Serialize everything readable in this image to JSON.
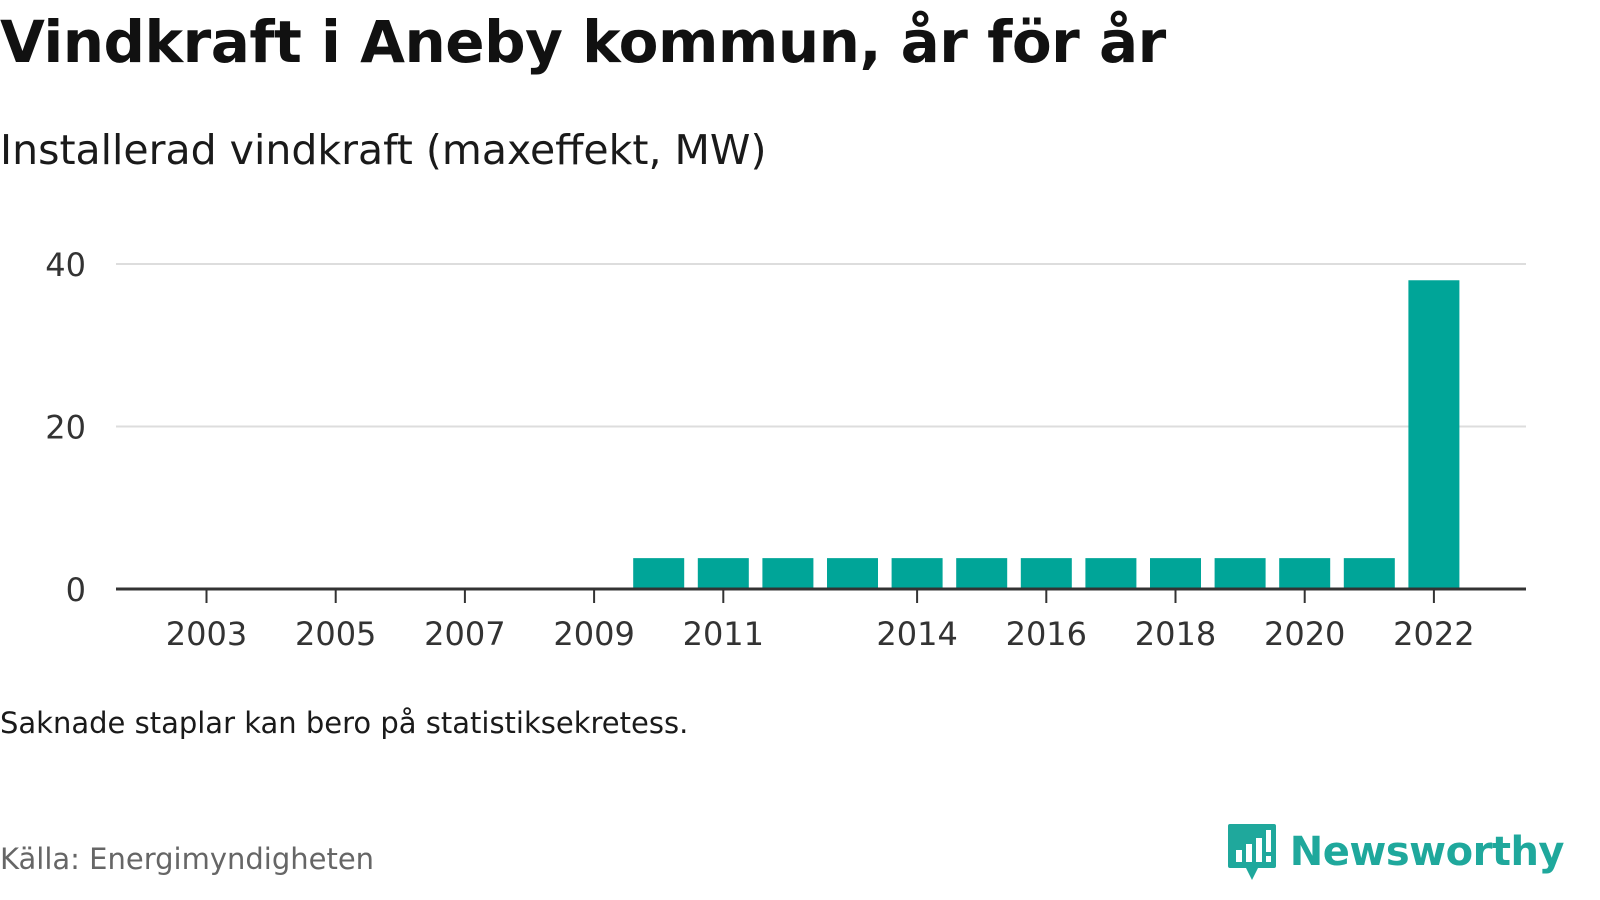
{
  "title": "Vindkraft i Aneby kommun, år för år",
  "subtitle": "Installerad vindkraft (maxeffekt, MW)",
  "note": "Saknade staplar kan bero på statistiksekretess.",
  "source": "Källa: Energimyndigheten",
  "brand": {
    "name": "Newsworthy",
    "icon": "newsworthy-logo-icon",
    "color": "#1fa89c"
  },
  "colors": {
    "bar": "#00a598",
    "grid": "#dddddd",
    "axis": "#333333",
    "tick_text": "#333333"
  },
  "chart_data": {
    "type": "bar",
    "categories": [
      "2003",
      "2004",
      "2005",
      "2006",
      "2007",
      "2008",
      "2009",
      "2010",
      "2011",
      "2012",
      "2013",
      "2014",
      "2015",
      "2016",
      "2017",
      "2018",
      "2019",
      "2020",
      "2021",
      "2022"
    ],
    "values": [
      0,
      0,
      0,
      0,
      0,
      0,
      0,
      3.8,
      3.8,
      3.8,
      3.8,
      3.8,
      3.8,
      3.8,
      3.8,
      3.8,
      3.8,
      3.8,
      3.8,
      38
    ],
    "x_tick_labels": [
      "2003",
      "2005",
      "2007",
      "2009",
      "2011",
      "2014",
      "2016",
      "2018",
      "2020",
      "2022"
    ],
    "y_ticks": [
      0,
      20,
      40
    ],
    "ylim": [
      0,
      40
    ],
    "xlabel": "",
    "ylabel": "",
    "grid": true,
    "legend": "none"
  }
}
